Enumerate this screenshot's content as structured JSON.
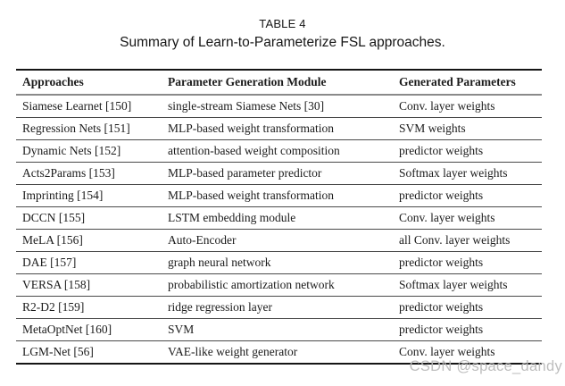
{
  "caption": {
    "label": "TABLE 4",
    "title": "Summary of Learn-to-Parameterize FSL approaches."
  },
  "table": {
    "columns": [
      "Approaches",
      "Parameter Generation Module",
      "Generated Parameters"
    ],
    "rows": [
      [
        "Siamese Learnet [150]",
        "single-stream Siamese Nets [30]",
        "Conv. layer weights"
      ],
      [
        "Regression Nets [151]",
        "MLP-based weight transformation",
        "SVM weights"
      ],
      [
        "Dynamic Nets [152]",
        "attention-based weight composition",
        "predictor weights"
      ],
      [
        "Acts2Params [153]",
        "MLP-based parameter predictor",
        "Softmax layer weights"
      ],
      [
        "Imprinting [154]",
        "MLP-based weight transformation",
        "predictor weights"
      ],
      [
        "DCCN [155]",
        "LSTM embedding module",
        "Conv. layer weights"
      ],
      [
        "MeLA [156]",
        "Auto-Encoder",
        "all Conv. layer weights"
      ],
      [
        "DAE [157]",
        "graph neural network",
        "predictor weights"
      ],
      [
        "VERSA [158]",
        "probabilistic amortization network",
        "Softmax layer weights"
      ],
      [
        "R2-D2 [159]",
        "ridge regression layer",
        "predictor weights"
      ],
      [
        "MetaOptNet [160]",
        "SVM",
        "predictor weights"
      ],
      [
        "LGM-Net [56]",
        "VAE-like weight generator",
        "Conv. layer weights"
      ]
    ]
  },
  "colors": {
    "text": "#1b1b1b",
    "rule_heavy": "#151515",
    "rule_header": "#8a8a8a",
    "rule_row": "#4a4a4a",
    "watermark": "#b9b9b9",
    "background": "#ffffff"
  },
  "watermark": {
    "text": "CSDN @space_dandy"
  }
}
